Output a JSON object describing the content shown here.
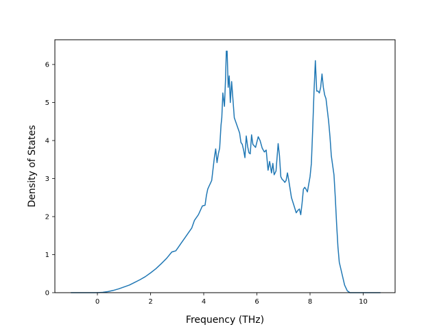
{
  "chart_data": {
    "type": "line",
    "title": "",
    "xlabel": "Frequency (THz)",
    "ylabel": "Density of States",
    "xlim": [
      -1.6,
      11.2
    ],
    "ylim": [
      0,
      6.65
    ],
    "x_ticks": [
      0,
      2,
      4,
      6,
      8,
      10
    ],
    "y_ticks": [
      0,
      1,
      2,
      3,
      4,
      5,
      6
    ],
    "x_tick_labels": [
      "0",
      "2",
      "4",
      "6",
      "8",
      "10"
    ],
    "y_tick_labels": [
      "0",
      "1",
      "2",
      "3",
      "4",
      "5",
      "6"
    ],
    "grid": false,
    "legend": "none",
    "series": [
      {
        "color": "#1f77b4",
        "x": [
          -1.0,
          -0.5,
          0.0,
          0.2,
          0.4,
          0.6,
          0.8,
          1.0,
          1.2,
          1.4,
          1.6,
          1.8,
          2.0,
          2.2,
          2.4,
          2.6,
          2.8,
          2.95,
          3.05,
          3.15,
          3.3,
          3.45,
          3.55,
          3.65,
          3.8,
          3.95,
          4.05,
          4.1,
          4.15,
          4.2,
          4.3,
          4.4,
          4.45,
          4.5,
          4.55,
          4.6,
          4.65,
          4.68,
          4.72,
          4.78,
          4.82,
          4.85,
          4.88,
          4.92,
          4.96,
          5.0,
          5.05,
          5.15,
          5.25,
          5.35,
          5.4,
          5.45,
          5.5,
          5.55,
          5.6,
          5.65,
          5.7,
          5.75,
          5.8,
          5.85,
          5.95,
          6.05,
          6.12,
          6.2,
          6.28,
          6.35,
          6.42,
          6.48,
          6.55,
          6.6,
          6.65,
          6.72,
          6.8,
          6.85,
          6.9,
          6.95,
          7.0,
          7.05,
          7.1,
          7.15,
          7.2,
          7.3,
          7.4,
          7.48,
          7.55,
          7.6,
          7.65,
          7.7,
          7.75,
          7.8,
          7.85,
          7.9,
          7.95,
          8.0,
          8.05,
          8.1,
          8.15,
          8.2,
          8.25,
          8.3,
          8.35,
          8.4,
          8.45,
          8.5,
          8.55,
          8.6,
          8.65,
          8.7,
          8.75,
          8.8,
          8.9,
          8.95,
          9.0,
          9.05,
          9.1,
          9.2,
          9.3,
          9.4,
          9.5,
          9.55,
          9.6,
          9.65,
          9.7,
          9.75,
          9.8,
          9.9,
          10.0,
          10.3,
          10.65
        ],
        "y": [
          0.0,
          0.0,
          0.0,
          0.01,
          0.03,
          0.06,
          0.1,
          0.15,
          0.2,
          0.27,
          0.34,
          0.42,
          0.52,
          0.63,
          0.76,
          0.9,
          1.07,
          1.1,
          1.2,
          1.3,
          1.45,
          1.6,
          1.7,
          1.9,
          2.05,
          2.28,
          2.3,
          2.55,
          2.72,
          2.8,
          2.95,
          3.55,
          3.78,
          3.42,
          3.65,
          3.8,
          4.4,
          4.6,
          5.25,
          4.9,
          5.6,
          6.35,
          6.35,
          5.4,
          5.7,
          5.0,
          5.55,
          4.6,
          4.4,
          4.2,
          3.95,
          3.9,
          3.75,
          3.55,
          4.12,
          3.85,
          3.68,
          3.65,
          4.15,
          3.9,
          3.82,
          4.1,
          4.0,
          3.8,
          3.7,
          3.75,
          3.22,
          3.45,
          3.15,
          3.4,
          3.1,
          3.2,
          3.92,
          3.6,
          3.05,
          2.98,
          2.95,
          2.9,
          2.95,
          3.15,
          2.95,
          2.5,
          2.28,
          2.1,
          2.17,
          2.2,
          2.05,
          2.35,
          2.72,
          2.77,
          2.72,
          2.65,
          2.85,
          3.05,
          3.4,
          4.3,
          5.3,
          6.1,
          5.3,
          5.3,
          5.25,
          5.4,
          5.75,
          5.4,
          5.2,
          5.1,
          4.8,
          4.5,
          4.1,
          3.6,
          3.1,
          2.5,
          1.8,
          1.2,
          0.8,
          0.5,
          0.2,
          0.05,
          0.0,
          0.0,
          0.0,
          0.0,
          0.0,
          0.0,
          0.0,
          0.0,
          0.0,
          0.0,
          0.0
        ]
      }
    ]
  }
}
